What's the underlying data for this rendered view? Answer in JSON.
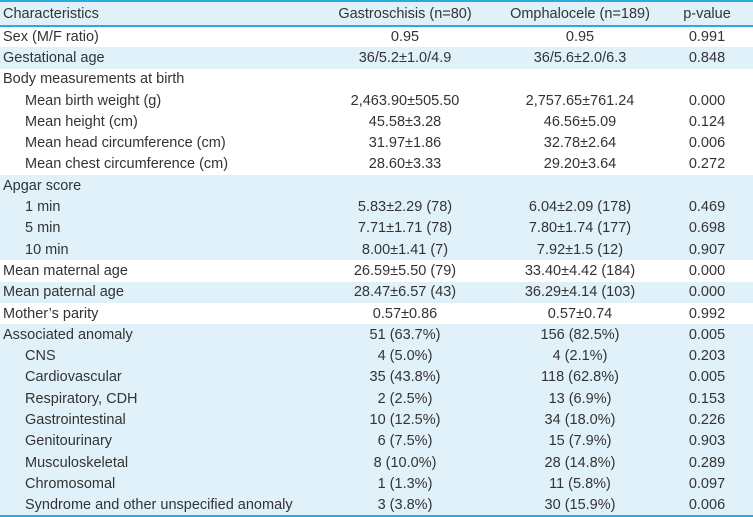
{
  "colors": {
    "accent": "#29ABE2",
    "row_shade": "#E1F1F9",
    "text": "#333333"
  },
  "table": {
    "columns": [
      "Characteristics",
      "Gastroschisis (n=80)",
      "Omphalocele (n=189)",
      "p-value"
    ],
    "rows": [
      {
        "label": "Sex (M/F ratio)",
        "indent": 0,
        "shade": false,
        "values": [
          "0.95",
          "0.95",
          "0.991"
        ]
      },
      {
        "label": "Gestational age",
        "indent": 0,
        "shade": true,
        "values": [
          "36/5.2±1.0/4.9",
          "36/5.6±2.0/6.3",
          "0.848"
        ]
      },
      {
        "label": "Body measurements at birth",
        "indent": 0,
        "shade": false,
        "values": [
          "",
          "",
          ""
        ]
      },
      {
        "label": "Mean birth weight (g)",
        "indent": 1,
        "shade": false,
        "values": [
          "2,463.90±505.50",
          "2,757.65±761.24",
          "0.000"
        ]
      },
      {
        "label": "Mean height (cm)",
        "indent": 1,
        "shade": false,
        "values": [
          "45.58±3.28",
          "46.56±5.09",
          "0.124"
        ]
      },
      {
        "label": "Mean head circumference (cm)",
        "indent": 1,
        "shade": false,
        "values": [
          "31.97±1.86",
          "32.78±2.64",
          "0.006"
        ]
      },
      {
        "label": "Mean chest circumference (cm)",
        "indent": 1,
        "shade": false,
        "values": [
          "28.60±3.33",
          "29.20±3.64",
          "0.272"
        ]
      },
      {
        "label": "Apgar score",
        "indent": 0,
        "shade": true,
        "values": [
          "",
          "",
          ""
        ]
      },
      {
        "label": "1 min",
        "indent": 1,
        "shade": true,
        "values": [
          "5.83±2.29 (78)",
          "6.04±2.09 (178)",
          "0.469"
        ]
      },
      {
        "label": "5 min",
        "indent": 1,
        "shade": true,
        "values": [
          "7.71±1.71 (78)",
          "7.80±1.74 (177)",
          "0.698"
        ]
      },
      {
        "label": "10 min",
        "indent": 1,
        "shade": true,
        "values": [
          "8.00±1.41 (7)",
          "7.92±1.5 (12)",
          "0.907"
        ]
      },
      {
        "label": "Mean maternal age",
        "indent": 0,
        "shade": false,
        "values": [
          "26.59±5.50 (79)",
          "33.40±4.42 (184)",
          "0.000"
        ]
      },
      {
        "label": "Mean paternal age",
        "indent": 0,
        "shade": true,
        "values": [
          "28.47±6.57 (43)",
          "36.29±4.14 (103)",
          "0.000"
        ]
      },
      {
        "label": "Mother’s parity",
        "indent": 0,
        "shade": false,
        "values": [
          "0.57±0.86",
          "0.57±0.74",
          "0.992"
        ]
      },
      {
        "label": "Associated anomaly",
        "indent": 0,
        "shade": true,
        "values": [
          "51 (63.7%)",
          "156 (82.5%)",
          "0.005"
        ]
      },
      {
        "label": "CNS",
        "indent": 1,
        "shade": true,
        "values": [
          "4 (5.0%)",
          "4 (2.1%)",
          "0.203"
        ]
      },
      {
        "label": "Cardiovascular",
        "indent": 1,
        "shade": true,
        "values": [
          "35 (43.8%)",
          "118 (62.8%)",
          "0.005"
        ]
      },
      {
        "label": "Respiratory, CDH",
        "indent": 1,
        "shade": true,
        "values": [
          "2 (2.5%)",
          "13 (6.9%)",
          "0.153"
        ]
      },
      {
        "label": "Gastrointestinal",
        "indent": 1,
        "shade": true,
        "values": [
          "10 (12.5%)",
          "34 (18.0%)",
          "0.226"
        ]
      },
      {
        "label": "Genitourinary",
        "indent": 1,
        "shade": true,
        "values": [
          "6 (7.5%)",
          "15 (7.9%)",
          "0.903"
        ]
      },
      {
        "label": "Musculoskeletal",
        "indent": 1,
        "shade": true,
        "values": [
          "8 (10.0%)",
          "28 (14.8%)",
          "0.289"
        ]
      },
      {
        "label": "Chromosomal",
        "indent": 1,
        "shade": true,
        "values": [
          "1 (1.3%)",
          "11 (5.8%)",
          "0.097"
        ]
      },
      {
        "label": "Syndrome and other unspecified anomaly",
        "indent": 1,
        "shade": true,
        "values": [
          "3 (3.8%)",
          "30 (15.9%)",
          "0.006"
        ]
      }
    ]
  }
}
